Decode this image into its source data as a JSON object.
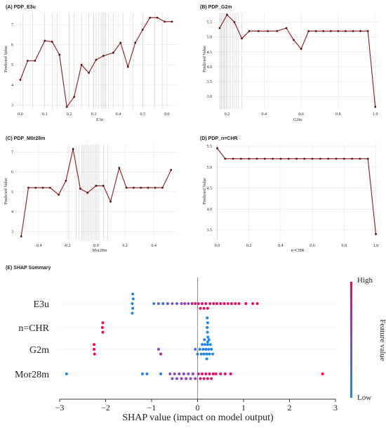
{
  "pdp_panels": [
    {
      "title": "(A) PDP_E3u",
      "xlabel": "E3u",
      "ylabel": "Predicted Value",
      "xlim": [
        -0.02,
        0.64
      ],
      "ylim": [
        2.8,
        7.6
      ],
      "xticks": [
        {
          "v": 0.0,
          "label": "0.0"
        },
        {
          "v": 0.1,
          "label": "0.1"
        },
        {
          "v": 0.2,
          "label": "0.2"
        },
        {
          "v": 0.3,
          "label": "0.3"
        },
        {
          "v": 0.4,
          "label": "0.4"
        },
        {
          "v": 0.5,
          "label": "0.5"
        },
        {
          "v": 0.6,
          "label": "0.6"
        }
      ],
      "yticks": [
        {
          "v": 3,
          "label": "3"
        },
        {
          "v": 4,
          "label": "4"
        },
        {
          "v": 5,
          "label": "5"
        },
        {
          "v": 6,
          "label": "6"
        },
        {
          "v": 7,
          "label": "7"
        }
      ],
      "rug": [
        0.01,
        0.05,
        0.1,
        0.13,
        0.15,
        0.2,
        0.22,
        0.25,
        0.28,
        0.3,
        0.31,
        0.32,
        0.33,
        0.335,
        0.34,
        0.345,
        0.35,
        0.36,
        0.38,
        0.42,
        0.46,
        0.5,
        0.55,
        0.58
      ]
    },
    {
      "title": "(B) PDP_G2m",
      "xlabel": "G2m",
      "ylabel": "Predicted Value",
      "xlim": [
        0.13,
        1.02
      ],
      "ylim": [
        2.58,
        5.82
      ],
      "xticks": [
        {
          "v": 0.2,
          "label": "0.2"
        },
        {
          "v": 0.4,
          "label": "0.4"
        },
        {
          "v": 0.6,
          "label": "0.6"
        },
        {
          "v": 0.8,
          "label": "0.8"
        },
        {
          "v": 1.0,
          "label": "1.0"
        }
      ],
      "yticks": [
        {
          "v": 3.0,
          "label": "3.0"
        },
        {
          "v": 3.5,
          "label": "3.5"
        },
        {
          "v": 4.0,
          "label": "4.0"
        },
        {
          "v": 4.5,
          "label": "4.5"
        },
        {
          "v": 5.0,
          "label": "5.0"
        },
        {
          "v": 5.5,
          "label": "5.5"
        }
      ],
      "rug": [
        0.16,
        0.165,
        0.17,
        0.175,
        0.18,
        0.185,
        0.19,
        0.195,
        0.2,
        0.21,
        0.22,
        0.23,
        0.24,
        0.25,
        0.26,
        0.28
      ]
    },
    {
      "title": "(C) PDP_M0r28m",
      "xlabel": "Mor28m",
      "ylabel": "Predicted Value",
      "xlim": [
        -0.56,
        0.56
      ],
      "ylim": [
        2.55,
        7.4
      ],
      "xticks": [
        {
          "v": -0.4,
          "label": "-0.4"
        },
        {
          "v": -0.2,
          "label": "-0.2"
        },
        {
          "v": 0.0,
          "label": "0.0"
        },
        {
          "v": 0.2,
          "label": "0.2"
        },
        {
          "v": 0.4,
          "label": "0.4"
        }
      ],
      "yticks": [
        {
          "v": 3,
          "label": "3"
        },
        {
          "v": 4,
          "label": "4"
        },
        {
          "v": 5,
          "label": "5"
        },
        {
          "v": 6,
          "label": "6"
        },
        {
          "v": 7,
          "label": "7"
        }
      ],
      "rug": [
        -0.19,
        -0.14,
        -0.12,
        -0.1,
        -0.09,
        -0.08,
        -0.07,
        -0.06,
        -0.05,
        -0.04,
        -0.03,
        -0.02,
        -0.01,
        0.0,
        0.01,
        0.02,
        0.05,
        0.08
      ]
    },
    {
      "title": "(D) PDP_n=CHR",
      "xlabel": "n=CHR",
      "ylabel": "Predicted Value",
      "xlim": [
        -0.02,
        1.02
      ],
      "ylim": [
        3.25,
        5.55
      ],
      "xticks": [
        {
          "v": 0.0,
          "label": "0.0"
        },
        {
          "v": 0.2,
          "label": "0.2"
        },
        {
          "v": 0.4,
          "label": "0.4"
        },
        {
          "v": 0.6,
          "label": "0.6"
        },
        {
          "v": 0.8,
          "label": "0.8"
        },
        {
          "v": 1.0,
          "label": "1.0"
        }
      ],
      "yticks": [
        {
          "v": 3.5,
          "label": "3.5"
        },
        {
          "v": 4.0,
          "label": "4.0"
        },
        {
          "v": 4.5,
          "label": "4.5"
        },
        {
          "v": 5.0,
          "label": "5.0"
        },
        {
          "v": 5.5,
          "label": "5.5"
        }
      ],
      "rug": [
        0.0
      ]
    }
  ],
  "chart_data": [
    {
      "type": "line",
      "title": "(A) PDP_E3u",
      "xlabel": "E3u",
      "ylabel": "Predicted Value",
      "x": [
        0.0,
        0.03,
        0.06,
        0.1,
        0.13,
        0.16,
        0.19,
        0.22,
        0.25,
        0.28,
        0.31,
        0.34,
        0.38,
        0.41,
        0.44,
        0.47,
        0.5,
        0.53,
        0.56,
        0.59,
        0.62
      ],
      "y": [
        4.25,
        5.2,
        5.2,
        6.2,
        6.15,
        5.5,
        2.9,
        3.4,
        5.0,
        4.6,
        5.25,
        5.45,
        5.6,
        6.1,
        4.9,
        6.1,
        6.75,
        7.35,
        7.35,
        7.15,
        7.15
      ]
    },
    {
      "type": "line",
      "title": "(B) PDP_G2m",
      "xlabel": "G2m",
      "ylabel": "Predicted Value",
      "x": [
        0.16,
        0.2,
        0.24,
        0.28,
        0.32,
        0.37,
        0.42,
        0.47,
        0.52,
        0.56,
        0.6,
        0.64,
        0.68,
        0.72,
        0.76,
        0.8,
        0.84,
        0.88,
        0.92,
        0.96,
        1.0
      ],
      "y": [
        5.3,
        5.75,
        5.5,
        4.95,
        5.2,
        5.2,
        5.2,
        5.2,
        5.3,
        4.9,
        4.6,
        5.2,
        5.2,
        5.2,
        5.2,
        5.2,
        5.2,
        5.2,
        5.2,
        5.2,
        2.65
      ]
    },
    {
      "type": "line",
      "title": "(C) PDP_M0r28m",
      "xlabel": "Mor28m",
      "ylabel": "Predicted Value",
      "x": [
        -0.52,
        -0.47,
        -0.42,
        -0.37,
        -0.32,
        -0.26,
        -0.21,
        -0.16,
        -0.11,
        -0.06,
        0.0,
        0.05,
        0.1,
        0.16,
        0.21,
        0.26,
        0.31,
        0.36,
        0.41,
        0.46,
        0.52
      ],
      "y": [
        2.75,
        5.2,
        5.2,
        5.2,
        5.2,
        4.85,
        5.55,
        7.15,
        5.15,
        4.95,
        5.3,
        5.3,
        4.5,
        6.2,
        5.2,
        5.2,
        5.2,
        5.2,
        5.2,
        5.2,
        6.1
      ]
    },
    {
      "type": "line",
      "title": "(D) PDP_n=CHR",
      "xlabel": "n=CHR",
      "ylabel": "Predicted Value",
      "x": [
        0.0,
        0.05,
        0.1,
        0.15,
        0.2,
        0.25,
        0.3,
        0.35,
        0.4,
        0.45,
        0.5,
        0.55,
        0.6,
        0.65,
        0.7,
        0.75,
        0.8,
        0.85,
        0.9,
        0.95,
        1.0
      ],
      "y": [
        5.45,
        5.2,
        5.2,
        5.2,
        5.2,
        5.2,
        5.2,
        5.2,
        5.2,
        5.2,
        5.2,
        5.2,
        5.2,
        5.2,
        5.2,
        5.2,
        5.2,
        5.2,
        5.2,
        5.2,
        3.4
      ]
    },
    {
      "type": "scatter",
      "title": "(E) SHAP Summary",
      "xlabel": "SHAP value (impact on model output)",
      "xlim": [
        -3,
        3
      ],
      "xticks": [
        {
          "v": -3,
          "label": "−3"
        },
        {
          "v": -2,
          "label": "−2"
        },
        {
          "v": -1,
          "label": "−1"
        },
        {
          "v": 0,
          "label": "0"
        },
        {
          "v": 1,
          "label": "1"
        },
        {
          "v": 2,
          "label": "2"
        },
        {
          "v": 3,
          "label": "3"
        }
      ],
      "colorbar": {
        "label": "Feature value",
        "high": "High",
        "low": "Low"
      },
      "features": [
        {
          "name": "E3u",
          "points": [
            {
              "v": -1.42,
              "c": 0
            },
            {
              "v": -1.41,
              "c": 0
            },
            {
              "v": -1.4,
              "c": 0
            },
            {
              "v": -1.42,
              "c": 0
            },
            {
              "v": -1.41,
              "c": 0
            },
            {
              "v": -0.95,
              "c": 0.15
            },
            {
              "v": -0.85,
              "c": 0.35
            },
            {
              "v": -0.75,
              "c": 0.1
            },
            {
              "v": -0.65,
              "c": 0.4
            },
            {
              "v": -0.55,
              "c": 0.45
            },
            {
              "v": -0.45,
              "c": 0.55
            },
            {
              "v": -0.35,
              "c": 0.5
            },
            {
              "v": -0.28,
              "c": 0.7
            },
            {
              "v": -0.2,
              "c": 0.6
            },
            {
              "v": -0.12,
              "c": 0.8
            },
            {
              "v": -0.05,
              "c": 0.85
            },
            {
              "v": 0.02,
              "c": 0.9
            },
            {
              "v": 0.06,
              "c": 0.95
            },
            {
              "v": 0.1,
              "c": 0.9
            },
            {
              "v": 0.14,
              "c": 0.95
            },
            {
              "v": 0.18,
              "c": 0.85
            },
            {
              "v": 0.22,
              "c": 0.9
            },
            {
              "v": 0.27,
              "c": 0.95
            },
            {
              "v": 0.35,
              "c": 0.9
            },
            {
              "v": 0.42,
              "c": 0.95
            },
            {
              "v": 0.5,
              "c": 0.9
            },
            {
              "v": 0.58,
              "c": 0.95
            },
            {
              "v": 0.66,
              "c": 0.9
            },
            {
              "v": 0.74,
              "c": 0.95
            },
            {
              "v": 0.82,
              "c": 0.9
            },
            {
              "v": 0.9,
              "c": 0.95
            },
            {
              "v": 1.05,
              "c": 0.95
            },
            {
              "v": 1.2,
              "c": 0.9
            },
            {
              "v": 1.3,
              "c": 0.95
            }
          ]
        },
        {
          "name": "n=CHR",
          "points": [
            {
              "v": -2.07,
              "c": 1
            },
            {
              "v": -2.06,
              "c": 1
            },
            {
              "v": -2.06,
              "c": 1
            },
            {
              "v": 0.21,
              "c": 0
            },
            {
              "v": 0.215,
              "c": 0
            },
            {
              "v": 0.22,
              "c": 0
            },
            {
              "v": 0.225,
              "c": 0
            },
            {
              "v": 0.21,
              "c": 0
            },
            {
              "v": 0.22,
              "c": 0
            }
          ]
        },
        {
          "name": "G2m",
          "points": [
            {
              "v": -2.25,
              "c": 1
            },
            {
              "v": -2.24,
              "c": 1
            },
            {
              "v": -2.25,
              "c": 1
            },
            {
              "v": -0.85,
              "c": 0.6
            },
            {
              "v": -0.8,
              "c": 0.75
            },
            {
              "v": -0.05,
              "c": 0.2
            },
            {
              "v": 0.0,
              "c": 0.1
            },
            {
              "v": 0.05,
              "c": 0.05
            },
            {
              "v": 0.08,
              "c": 0.05
            },
            {
              "v": 0.1,
              "c": 0
            },
            {
              "v": 0.12,
              "c": 0.05
            },
            {
              "v": 0.14,
              "c": 0
            },
            {
              "v": 0.16,
              "c": 0.05
            },
            {
              "v": 0.18,
              "c": 0
            },
            {
              "v": 0.2,
              "c": 0.05
            },
            {
              "v": 0.22,
              "c": 0
            },
            {
              "v": 0.24,
              "c": 0.05
            },
            {
              "v": 0.26,
              "c": 0
            },
            {
              "v": 0.28,
              "c": 0.05
            },
            {
              "v": 0.3,
              "c": 0
            },
            {
              "v": 0.33,
              "c": 0.05
            },
            {
              "v": 0.2,
              "c": 0
            },
            {
              "v": 0.15,
              "c": 0.05
            },
            {
              "v": 0.25,
              "c": 0
            }
          ]
        },
        {
          "name": "Mor28m",
          "points": [
            {
              "v": -2.85,
              "c": 0
            },
            {
              "v": -1.2,
              "c": 0.05
            },
            {
              "v": -1.1,
              "c": 0.1
            },
            {
              "v": -0.8,
              "c": 0.1
            },
            {
              "v": -0.6,
              "c": 0.5
            },
            {
              "v": -0.55,
              "c": 0.55
            },
            {
              "v": -0.5,
              "c": 0.6
            },
            {
              "v": -0.45,
              "c": 0.5
            },
            {
              "v": -0.4,
              "c": 0.55
            },
            {
              "v": -0.35,
              "c": 0.6
            },
            {
              "v": -0.3,
              "c": 0.55
            },
            {
              "v": -0.25,
              "c": 0.6
            },
            {
              "v": -0.2,
              "c": 0.55
            },
            {
              "v": -0.15,
              "c": 0.5
            },
            {
              "v": -0.1,
              "c": 0.55
            },
            {
              "v": -0.05,
              "c": 0.6
            },
            {
              "v": 0.02,
              "c": 0.85
            },
            {
              "v": 0.06,
              "c": 0.9
            },
            {
              "v": 0.1,
              "c": 0.95
            },
            {
              "v": 0.14,
              "c": 0.9
            },
            {
              "v": 0.18,
              "c": 0.95
            },
            {
              "v": 0.22,
              "c": 0.9
            },
            {
              "v": 0.26,
              "c": 0.95
            },
            {
              "v": 0.3,
              "c": 0.9
            },
            {
              "v": 0.34,
              "c": 0.95
            },
            {
              "v": 0.4,
              "c": 0.9
            },
            {
              "v": 0.5,
              "c": 0.95
            },
            {
              "v": 0.6,
              "c": 0.9
            },
            {
              "v": 0.72,
              "c": 0.95
            },
            {
              "v": 2.72,
              "c": 1
            }
          ]
        }
      ]
    }
  ],
  "colors": {
    "line": "#8b1a1a",
    "marker": "#5a0d0d",
    "rug": "#bbbbbb",
    "blue": "#1e88e5",
    "pink": "#ff0052",
    "zero_line": "#888888"
  }
}
